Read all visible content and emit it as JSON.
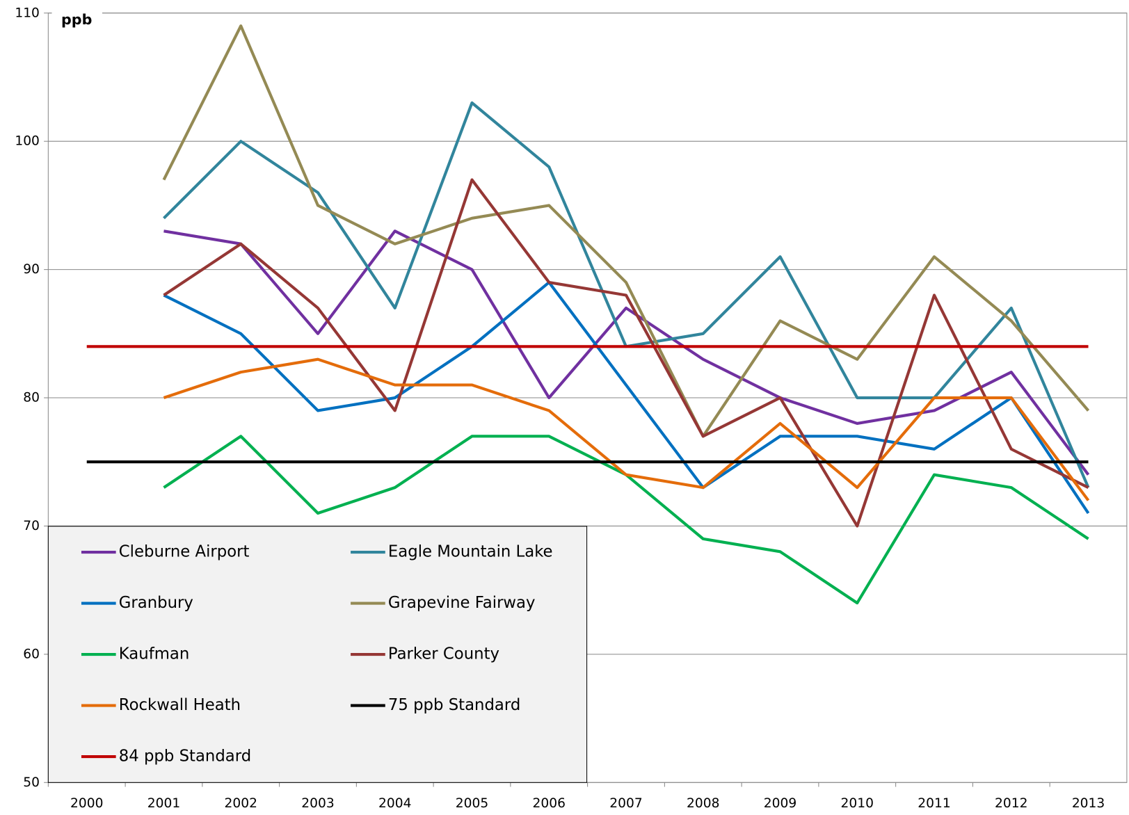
{
  "chart_data": {
    "type": "line",
    "ylabel": "ppb",
    "categories": [
      "2000",
      "2001",
      "2002",
      "2003",
      "2004",
      "2005",
      "2006",
      "2007",
      "2008",
      "2009",
      "2010",
      "2011",
      "2012",
      "2013"
    ],
    "ylim": [
      50,
      110
    ],
    "yticks": [
      50,
      60,
      70,
      80,
      90,
      100,
      110
    ],
    "grid": true,
    "legend": "lower left",
    "series": [
      {
        "name": "Cleburne Airport",
        "color": "#7030a0",
        "values": [
          null,
          93,
          92,
          85,
          93,
          90,
          80,
          87,
          83,
          80,
          78,
          79,
          82,
          74
        ]
      },
      {
        "name": "Eagle Mountain Lake",
        "color": "#31859c",
        "values": [
          null,
          94,
          100,
          96,
          87,
          103,
          98,
          84,
          85,
          91,
          80,
          80,
          87,
          73
        ]
      },
      {
        "name": "Granbury",
        "color": "#0070c0",
        "values": [
          null,
          88,
          85,
          79,
          80,
          84,
          89,
          81,
          73,
          77,
          77,
          76,
          80,
          71
        ]
      },
      {
        "name": "Grapevine Fairway",
        "color": "#948a54",
        "values": [
          null,
          97,
          109,
          95,
          92,
          94,
          95,
          89,
          77,
          86,
          83,
          91,
          86,
          79
        ]
      },
      {
        "name": "Kaufman",
        "color": "#00b050",
        "values": [
          null,
          73,
          77,
          71,
          73,
          77,
          77,
          74,
          69,
          68,
          64,
          74,
          73,
          69
        ]
      },
      {
        "name": "Parker County",
        "color": "#953735",
        "values": [
          null,
          88,
          92,
          87,
          79,
          97,
          89,
          88,
          77,
          80,
          70,
          88,
          76,
          73
        ]
      },
      {
        "name": "Rockwall Heath",
        "color": "#e46c0a",
        "values": [
          null,
          80,
          82,
          83,
          81,
          81,
          79,
          74,
          73,
          78,
          73,
          80,
          80,
          72
        ]
      },
      {
        "name": "75 ppb Standard",
        "color": "#000000",
        "values": [
          75,
          75,
          75,
          75,
          75,
          75,
          75,
          75,
          75,
          75,
          75,
          75,
          75,
          75
        ]
      },
      {
        "name": "84 ppb Standard",
        "color": "#c00000",
        "values": [
          84,
          84,
          84,
          84,
          84,
          84,
          84,
          84,
          84,
          84,
          84,
          84,
          84,
          84
        ]
      }
    ]
  }
}
